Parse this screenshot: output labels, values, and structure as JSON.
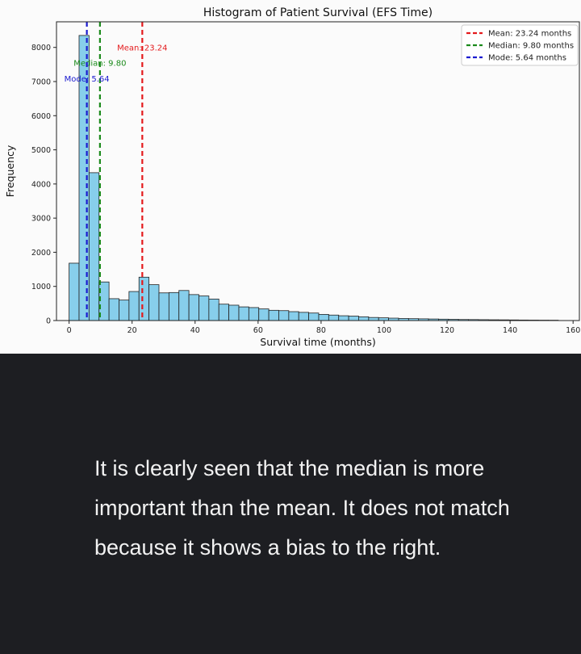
{
  "chart_data": {
    "type": "bar",
    "title": "Histogram of Patient Survival (EFS Time)",
    "xlabel": "Survival time (months)",
    "ylabel": "Frequency",
    "xlim": [
      -4,
      162
    ],
    "ylim": [
      0,
      8750
    ],
    "xticks": [
      0,
      20,
      40,
      60,
      80,
      100,
      120,
      140,
      160
    ],
    "xtick_labels": [
      "0",
      "20",
      "40",
      "60",
      "80",
      "100",
      "120",
      "140",
      "160"
    ],
    "yticks": [
      0,
      1000,
      2000,
      3000,
      4000,
      5000,
      6000,
      7000,
      8000
    ],
    "ytick_labels": [
      "0",
      "1000",
      "2000",
      "3000",
      "4000",
      "5000",
      "6000",
      "7000",
      "8000"
    ],
    "bin_start": 0,
    "bin_width": 3.17,
    "bar_color": "#87ceeb",
    "bar_edge_color": "#222222",
    "values": [
      1680,
      8350,
      4330,
      1130,
      640,
      600,
      850,
      1270,
      1050,
      810,
      820,
      880,
      760,
      720,
      630,
      480,
      450,
      400,
      380,
      340,
      300,
      290,
      260,
      240,
      220,
      180,
      160,
      140,
      130,
      110,
      90,
      80,
      70,
      60,
      55,
      50,
      45,
      40,
      35,
      30,
      28,
      25,
      22,
      20,
      18,
      15,
      13,
      11,
      10
    ],
    "reference_lines": [
      {
        "key": "mean",
        "x": 23.24,
        "color": "#e41a1c",
        "legend": "Mean: 23.24 months",
        "label": "Mean: 23.24",
        "label_y": 8000
      },
      {
        "key": "median",
        "x": 9.8,
        "color": "#1a8a1a",
        "legend": "Median: 9.80 months",
        "label": "Median: 9.80",
        "label_y": 7550
      },
      {
        "key": "mode",
        "x": 5.64,
        "color": "#1a1acf",
        "legend": "Mode: 5.64 months",
        "label": "Mode: 5.64",
        "label_y": 7100
      }
    ],
    "legend_position": "top-right",
    "grid": false
  },
  "caption": {
    "text": "It is clearly seen that the median is more important than the mean. It does not match because it shows a bias to the right."
  }
}
